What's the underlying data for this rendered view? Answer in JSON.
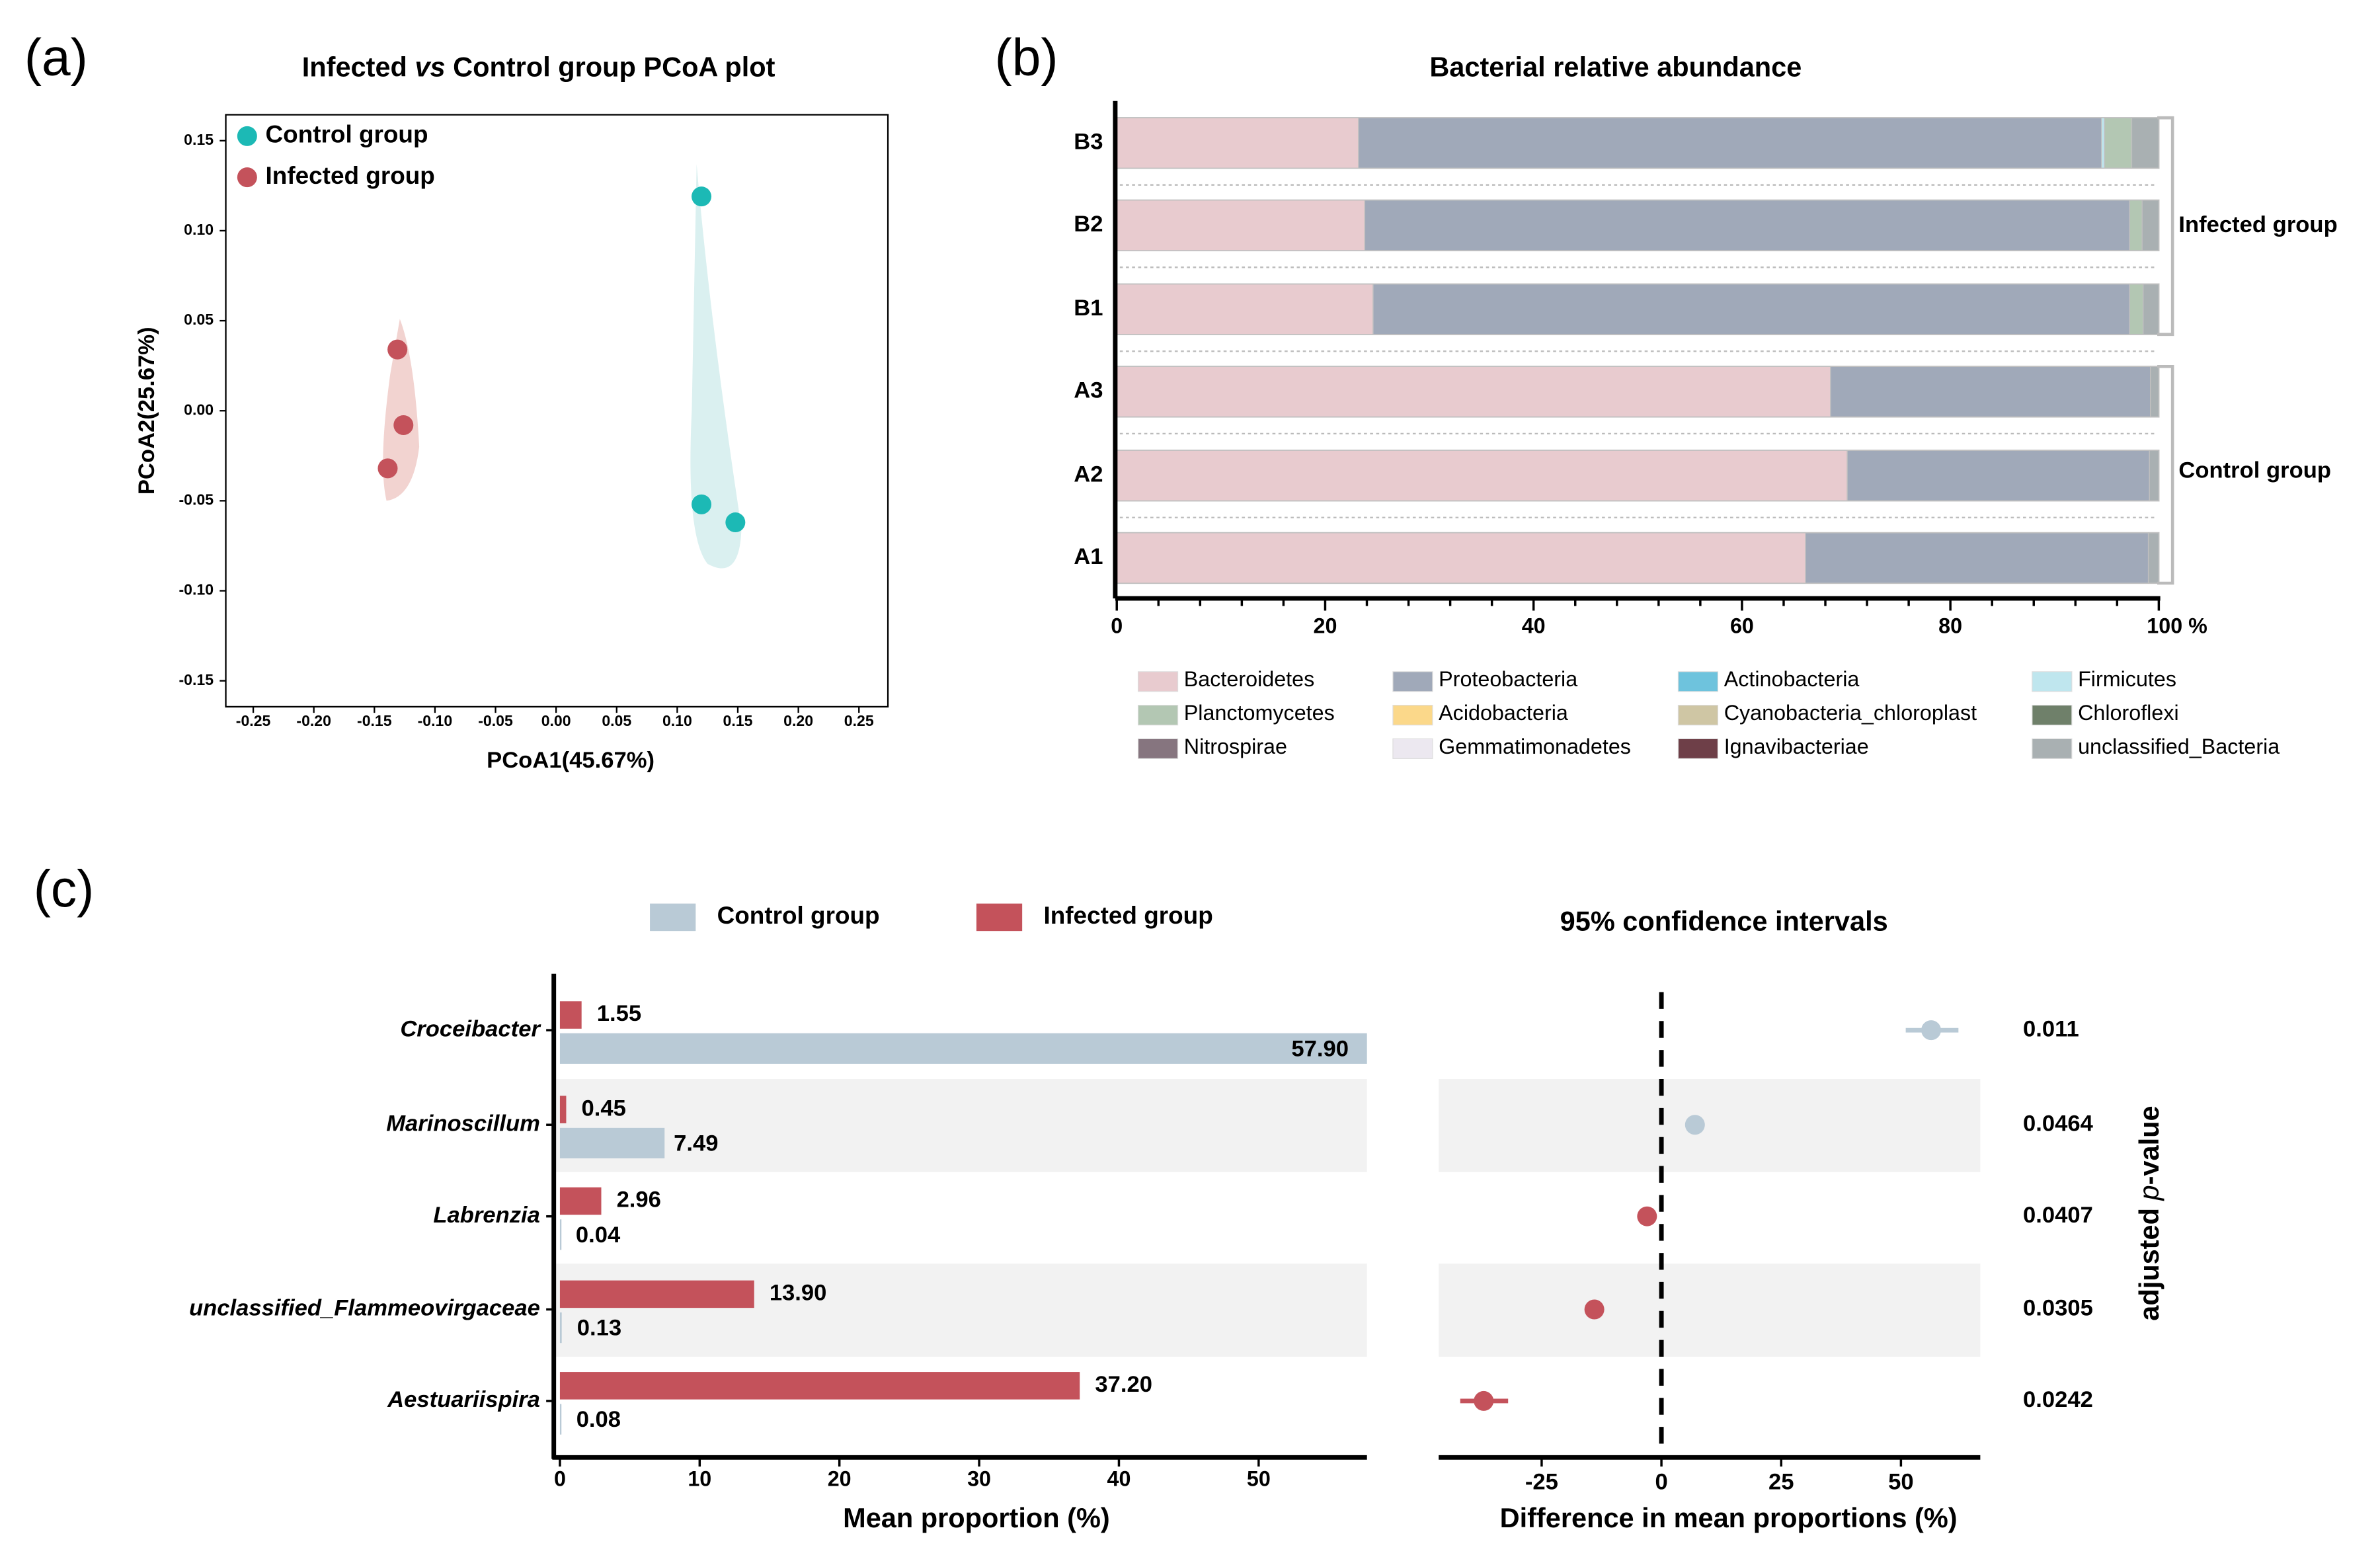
{
  "colors": {
    "control": "#1cb9b5",
    "infected": "#c4525b",
    "control_bar": "#b9cad6",
    "infected_bar": "#c4525b",
    "band": "#f2f2f2"
  },
  "chart_data": [
    {
      "panel_label": "(a)",
      "type": "scatter",
      "title_parts": [
        "Infected ",
        "vs",
        " Control group PCoA plot"
      ],
      "xlabel": "PCoA1(45.67%)",
      "ylabel": "PCoA2(25.67%)",
      "xlim": [
        -0.28,
        0.27
      ],
      "ylim": [
        -0.165,
        0.165
      ],
      "xticks": [
        "-0.25",
        "-0.20",
        "-0.15",
        "-0.10",
        "-0.05",
        "0.00",
        "0.05",
        "0.10",
        "0.15",
        "0.20",
        "0.25"
      ],
      "yticks": [
        "0.15",
        "0.10",
        "0.05",
        "0.00",
        "-0.05",
        "-0.10",
        "-0.15"
      ],
      "legend_position": "top-left",
      "series": [
        {
          "name": "Control group",
          "points": [
            [
              0.12,
              0.119
            ],
            [
              0.12,
              -0.052
            ],
            [
              0.148,
              -0.062
            ]
          ]
        },
        {
          "name": "Infected group",
          "points": [
            [
              -0.131,
              0.034
            ],
            [
              -0.126,
              -0.008
            ],
            [
              -0.139,
              -0.032
            ]
          ]
        }
      ]
    },
    {
      "panel_label": "(b)",
      "type": "bar",
      "orientation": "horizontal-stacked",
      "title": "Bacterial relative abundance",
      "xticks": [
        "0",
        "20",
        "40",
        "60",
        "80",
        "100 %"
      ],
      "xlim": [
        0,
        100
      ],
      "categories": [
        "B3",
        "B2",
        "B1",
        "A3",
        "A2",
        "A1"
      ],
      "groups": [
        {
          "name": "Infected group",
          "members": [
            "B3",
            "B2",
            "B1"
          ]
        },
        {
          "name": "Control group",
          "members": [
            "A3",
            "A2",
            "A1"
          ]
        }
      ],
      "taxa": [
        {
          "name": "Bacteroidetes",
          "color": "#e8cbcf",
          "values": [
            23.2,
            23.8,
            24.6,
            68.5,
            70.1,
            66.1
          ]
        },
        {
          "name": "Proteobacteria",
          "color": "#a0a9b9",
          "values": [
            71.3,
            73.4,
            72.6,
            30.7,
            29.0,
            32.9
          ]
        },
        {
          "name": "Actinobacteria",
          "color": "#6ec3dd",
          "values": [
            0,
            0,
            0,
            0,
            0,
            0
          ]
        },
        {
          "name": "Firmicutes",
          "color": "#bfe6ee",
          "values": [
            0.3,
            0,
            0,
            0,
            0,
            0
          ]
        },
        {
          "name": "Planctomycetes",
          "color": "#b3c7b3",
          "values": [
            2.6,
            1.2,
            1.3,
            0,
            0,
            0
          ]
        },
        {
          "name": "Acidobacteria",
          "color": "#fbd88a",
          "values": [
            0,
            0,
            0,
            0,
            0,
            0
          ]
        },
        {
          "name": "Cyanobacteria_chloroplast",
          "color": "#cfc6a4",
          "values": [
            0,
            0,
            0,
            0,
            0,
            0
          ]
        },
        {
          "name": "Chloroflexi",
          "color": "#6f806a",
          "values": [
            0,
            0,
            0,
            0,
            0,
            0
          ]
        },
        {
          "name": "Nitrospirae",
          "color": "#86757f",
          "values": [
            0,
            0,
            0,
            0,
            0,
            0
          ]
        },
        {
          "name": "Gemmatimonadetes",
          "color": "#ece8f0",
          "values": [
            0,
            0,
            0,
            0,
            0,
            0
          ]
        },
        {
          "name": "Ignavibacteriae",
          "color": "#6e3f48",
          "values": [
            0,
            0,
            0,
            0,
            0,
            0
          ]
        },
        {
          "name": "unclassified_Bacteria",
          "color": "#a9b0b2",
          "values": [
            2.6,
            1.6,
            1.5,
            0.8,
            0.9,
            1.0
          ]
        }
      ]
    },
    {
      "panel_label": "(c)",
      "type": "bar",
      "orientation": "horizontal-grouped",
      "legend": [
        "Control group",
        "Infected group"
      ],
      "xlabel": "Mean proportion (%)",
      "xticks": [
        "0",
        "10",
        "20",
        "30",
        "40",
        "50"
      ],
      "xlim": [
        0,
        58
      ],
      "categories": [
        "Croceibacter",
        "Marinoscillum",
        "Labrenzia",
        "unclassified_Flammeovirgaceae",
        "Aestuariispira"
      ],
      "series": [
        {
          "name": "Infected group",
          "values": [
            1.55,
            0.45,
            2.96,
            13.9,
            37.2
          ],
          "labels": [
            "1.55",
            "0.45",
            "2.96",
            "13.90",
            "37.20"
          ]
        },
        {
          "name": "Control group",
          "values": [
            57.9,
            7.49,
            0.04,
            0.13,
            0.08
          ],
          "labels": [
            "57.90",
            "7.49",
            "0.04",
            "0.13",
            "0.08"
          ]
        }
      ]
    },
    {
      "type": "scatter",
      "title": "95% confidence intervals",
      "xlabel": "Difference in mean proportions (%)",
      "xticks": [
        "-25",
        "0",
        "25",
        "50"
      ],
      "xlim": [
        -47,
        66
      ],
      "categories": [
        "Croceibacter",
        "Marinoscillum",
        "Labrenzia",
        "unclassified_Flammeovirgaceae",
        "Aestuariispira"
      ],
      "estimates": [
        56.3,
        7.0,
        -3.0,
        -14.0,
        -37.1
      ],
      "ci": [
        [
          51,
          62
        ],
        [
          5.5,
          8.5
        ],
        [
          -4,
          -2
        ],
        [
          -15,
          -13
        ],
        [
          -42,
          -32
        ]
      ],
      "enriched_in": [
        "Control group",
        "Control group",
        "Infected group",
        "Infected group",
        "Infected group"
      ],
      "right_axis_label_parts": [
        "adjusted ",
        "p",
        "-value"
      ],
      "p_values": [
        "0.011",
        "0.0464",
        "0.0407",
        "0.0305",
        "0.0242"
      ]
    }
  ]
}
